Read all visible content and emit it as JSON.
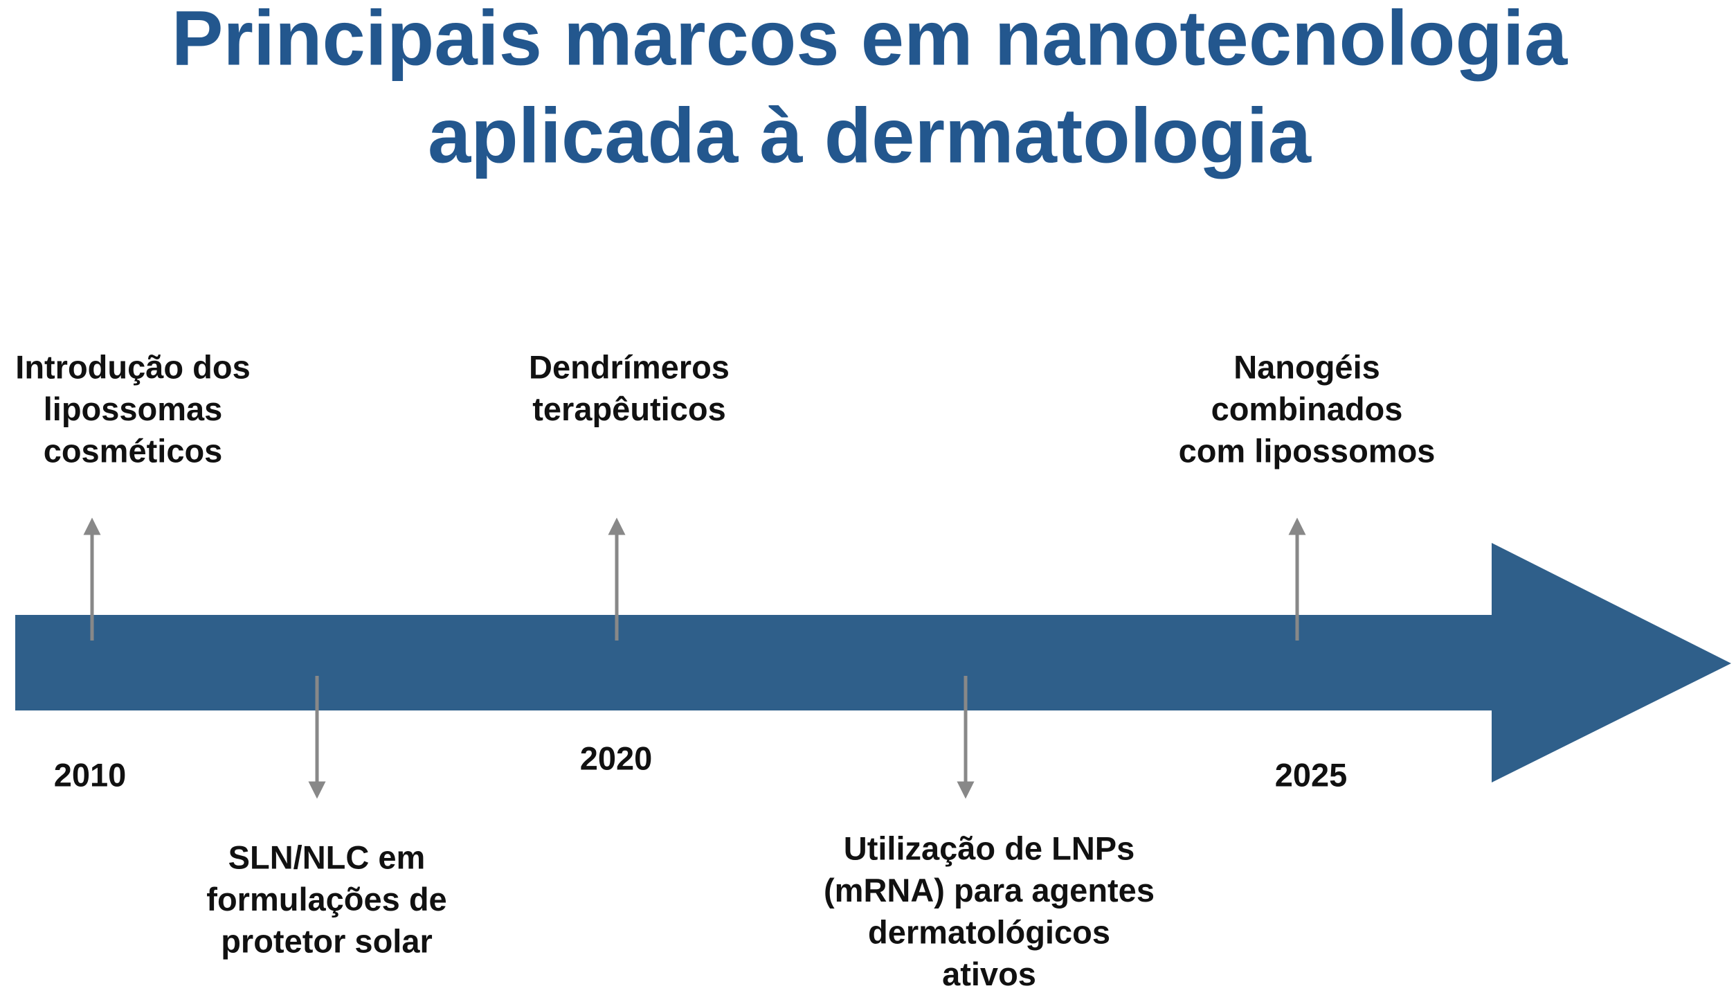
{
  "title": [
    "Principais marcos em nanotecnologia",
    "aplicada à dermatologia"
  ],
  "events": [
    {
      "label": [
        "Introdução dos",
        "lipossomas",
        "cosméticos"
      ]
    },
    {
      "label": [
        "SLN/NLC em",
        "formulações de",
        "protetor solar"
      ]
    },
    {
      "label": [
        "Dendrímeros",
        "terapêuticos"
      ]
    },
    {
      "label": [
        "Utilização de LNPs",
        "(mRNA) para agentes",
        "dermatológicos",
        "ativos"
      ]
    },
    {
      "label": [
        "Nanogéis",
        "combinados",
        "com lipossomos"
      ]
    }
  ],
  "years": [
    "2010",
    "2020",
    "2025"
  ]
}
